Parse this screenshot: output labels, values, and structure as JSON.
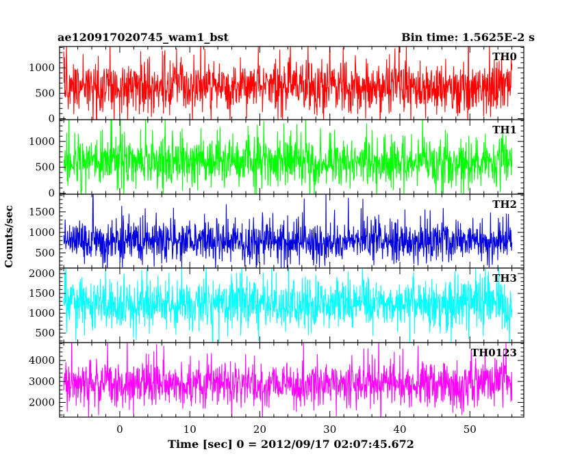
{
  "chart_data": {
    "type": "line",
    "title_left": "ae120917020745_wam1_bst",
    "title_right": "Bin time: 1.5625E-2 s",
    "xlabel": "Time [sec] 0 = 2012/09/17 02:07:45.672",
    "ylabel": "Counts/sec",
    "xlim": [
      -8.6,
      57.7
    ],
    "x_ticks": [
      0,
      10,
      20,
      30,
      40,
      50
    ],
    "x_data_range": [
      -8.0,
      56.0
    ],
    "bin_time": 0.015625,
    "grid": false,
    "panels": [
      {
        "name": "TH0",
        "color": "#ff0000",
        "ylim": [
          -20,
          1420
        ],
        "y_ticks": [
          0,
          500,
          1000
        ],
        "mean": 620,
        "lower_envelope": 90,
        "upper_envelope": 1150,
        "peak_max": 1420
      },
      {
        "name": "TH1",
        "color": "#00ff00",
        "ylim": [
          -20,
          1420
        ],
        "y_ticks": [
          0,
          500,
          1000
        ],
        "mean": 600,
        "lower_envelope": 100,
        "upper_envelope": 1100,
        "peak_max": 1420
      },
      {
        "name": "TH2",
        "color": "#0000dd",
        "ylim": [
          130,
          1930
        ],
        "y_ticks": [
          500,
          1000,
          1500
        ],
        "mean": 780,
        "lower_envelope": 350,
        "upper_envelope": 1350,
        "peak_max": 1830
      },
      {
        "name": "TH3",
        "color": "#00ffff",
        "ylim": [
          260,
          2140
        ],
        "y_ticks": [
          500,
          1000,
          1500,
          2000
        ],
        "mean": 1250,
        "lower_envelope": 550,
        "upper_envelope": 1850,
        "peak_max": 2140
      },
      {
        "name": "TH0123",
        "color": "#ff00ff",
        "ylim": [
          1300,
          4850
        ],
        "y_ticks": [
          2000,
          3000,
          4000
        ],
        "mean": 2900,
        "lower_envelope": 1800,
        "upper_envelope": 4000,
        "peak_max": 4850
      }
    ]
  }
}
